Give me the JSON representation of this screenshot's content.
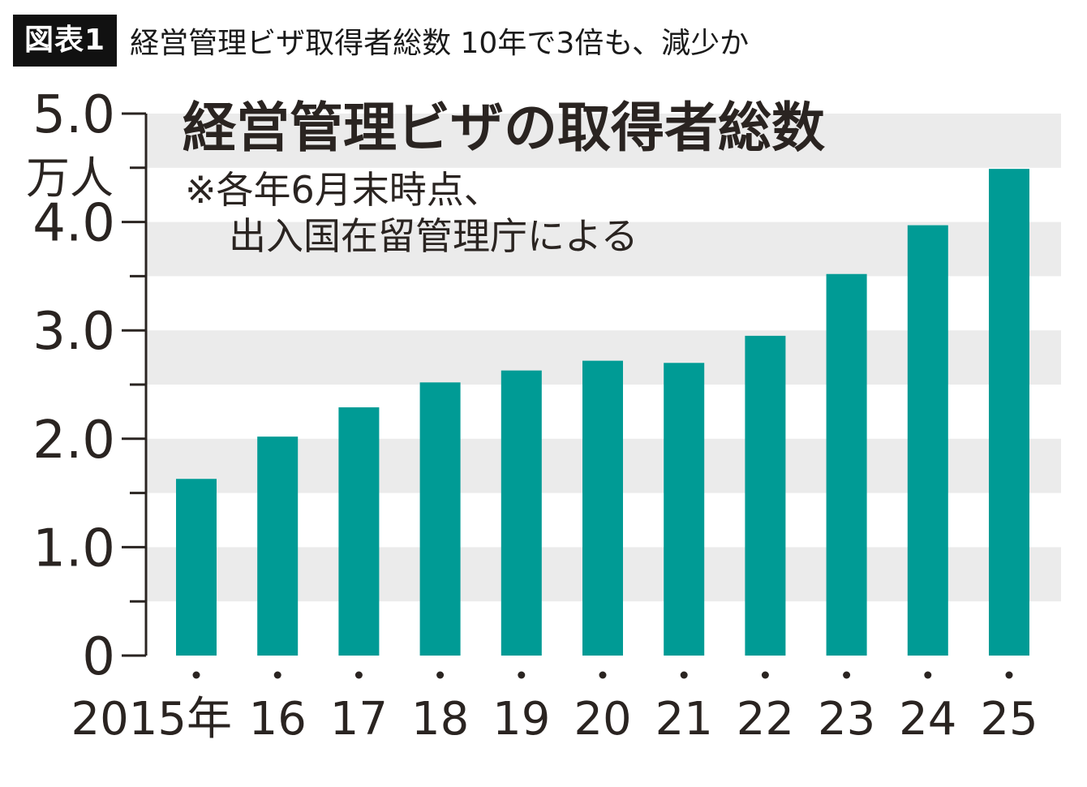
{
  "header": {
    "figure_label": "図表1",
    "headline": "経営管理ビザ取得者総数 10年で3倍も、減少か"
  },
  "chart_data": {
    "type": "bar",
    "title": "経営管理ビザの取得者総数",
    "note_line1": "※各年6月末時点、",
    "note_line2": "出入国在留管理庁による",
    "unit_label": "万人",
    "categories": [
      "2015年",
      "16",
      "17",
      "18",
      "19",
      "20",
      "21",
      "22",
      "23",
      "24",
      "25"
    ],
    "values": [
      1.63,
      2.02,
      2.29,
      2.52,
      2.63,
      2.72,
      2.7,
      2.95,
      3.52,
      3.97,
      4.49
    ],
    "ylim": [
      0,
      5.0
    ],
    "y_ticks": [
      "0",
      "1.0",
      "2.0",
      "3.0",
      "4.0",
      "5.0"
    ],
    "grid": "alternating horizontal bands",
    "colors": {
      "bar": "#009b95",
      "band": "#ebebeb",
      "axis": "#2a2421"
    }
  }
}
